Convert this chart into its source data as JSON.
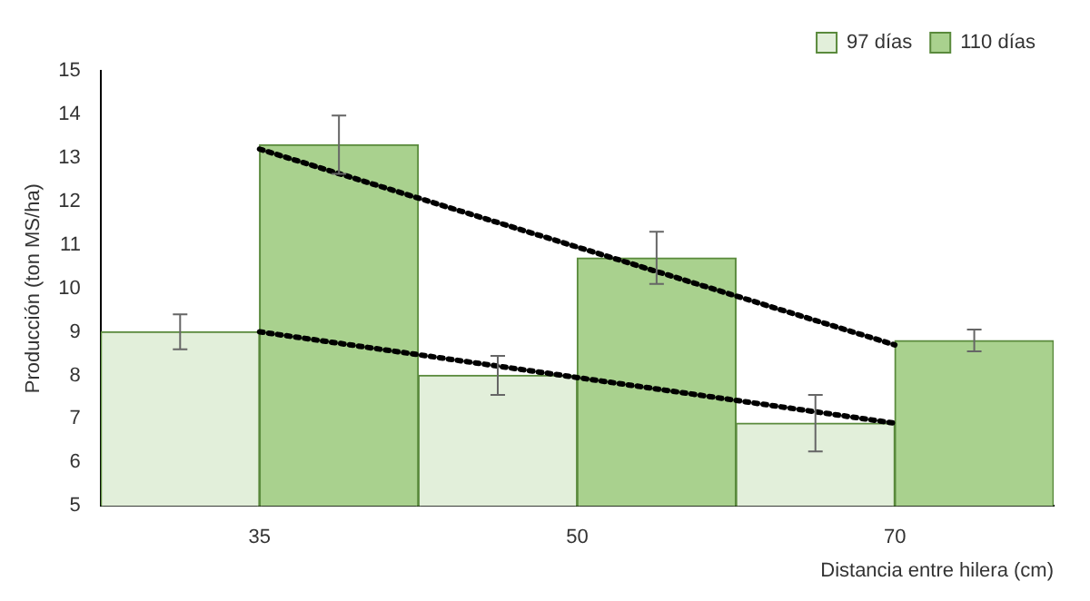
{
  "chart_data": {
    "type": "bar",
    "xlabel": "Distancia entre hilera (cm)",
    "ylabel": "Producción (ton MS/ha)",
    "categories": [
      "35",
      "50",
      "70"
    ],
    "series": [
      {
        "name": "97 días",
        "color": "#e2efda",
        "values": [
          9.0,
          8.0,
          6.9
        ],
        "errors": [
          0.4,
          0.45,
          0.65
        ]
      },
      {
        "name": "110 días",
        "color": "#a9d18e",
        "values": [
          13.3,
          10.7,
          8.8
        ],
        "errors": [
          0.67,
          0.6,
          0.25
        ]
      },
      {
        "type": "line",
        "color": "#000000",
        "x": [
          "35",
          "70"
        ],
        "values": [
          9.0,
          6.9
        ],
        "line_style": "dotted",
        "marker": "none"
      },
      {
        "type": "line",
        "color": "#000000",
        "x": [
          "35",
          "70"
        ],
        "values": [
          13.2,
          8.7
        ],
        "line_style": "dotted",
        "marker": "none"
      }
    ],
    "ylim": [
      5,
      15
    ],
    "yticks": [
      5,
      6,
      7,
      8,
      9,
      10,
      11,
      12,
      13,
      14,
      15
    ],
    "grid": false,
    "legend": "top right"
  }
}
